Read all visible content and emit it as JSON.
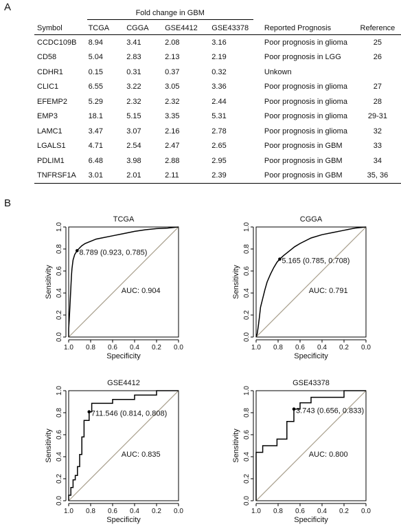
{
  "panel_a_label": "A",
  "panel_b_label": "B",
  "table": {
    "group_header": "Fold change in GBM",
    "columns": [
      "Symbol",
      "TCGA",
      "CGGA",
      "GSE4412",
      "GSE43378",
      "Reported Prognosis",
      "Reference"
    ],
    "rows": [
      [
        "CCDC109B",
        "8.94",
        "3.41",
        "2.08",
        "3.16",
        "Poor prognosis in glioma",
        "25"
      ],
      [
        "CD58",
        "5.04",
        "2.83",
        "2.13",
        "2.19",
        "Poor prognosis in LGG",
        "26"
      ],
      [
        "CDHR1",
        "0.15",
        "0.31",
        "0.37",
        "0.32",
        "Unkown",
        ""
      ],
      [
        "CLIC1",
        "6.55",
        "3.22",
        "3.05",
        "3.36",
        "Poor prognosis in glioma",
        "27"
      ],
      [
        "EFEMP2",
        "5.29",
        "2.32",
        "2.32",
        "2.44",
        "Poor prognosis in glioma",
        "28"
      ],
      [
        "EMP3",
        "18.1",
        "5.15",
        "3.35",
        "5.31",
        "Poor prognosis in glioma",
        "29-31"
      ],
      [
        "LAMC1",
        "3.47",
        "3.07",
        "2.16",
        "2.78",
        "Poor prognosis in glioma",
        "32"
      ],
      [
        "LGALS1",
        "4.71",
        "2.54",
        "2.47",
        "2.65",
        "Poor prognosis in GBM",
        "33"
      ],
      [
        "PDLIM1",
        "6.48",
        "3.98",
        "2.88",
        "2.95",
        "Poor prognosis in GBM",
        "34"
      ],
      [
        "TNFRSF1A",
        "3.01",
        "2.01",
        "2.11",
        "2.39",
        "Poor prognosis in GBM",
        "35, 36"
      ]
    ]
  },
  "chart_data": [
    {
      "type": "line",
      "title": "TCGA",
      "xlabel": "Specificity",
      "ylabel": "Sensitivity",
      "xlim": [
        1.0,
        0.0
      ],
      "ylim": [
        0.0,
        1.0
      ],
      "x_ticks": [
        "1.0",
        "0.8",
        "0.6",
        "0.4",
        "0.2",
        "0.0"
      ],
      "y_ticks": [
        "0.0",
        "0.2",
        "0.4",
        "0.6",
        "0.8",
        "1.0"
      ],
      "auc_label": "AUC: 0.904",
      "threshold_label": "8.789 (0.923, 0.785)",
      "threshold_point": [
        0.923,
        0.785
      ],
      "diagonal_color": "#a89f8c",
      "curve_color": "#000000",
      "points": [
        [
          1.0,
          0.0
        ],
        [
          1.0,
          0.08
        ],
        [
          0.995,
          0.15
        ],
        [
          0.99,
          0.25
        ],
        [
          0.985,
          0.35
        ],
        [
          0.98,
          0.45
        ],
        [
          0.975,
          0.55
        ],
        [
          0.97,
          0.62
        ],
        [
          0.96,
          0.7
        ],
        [
          0.945,
          0.75
        ],
        [
          0.923,
          0.785
        ],
        [
          0.9,
          0.81
        ],
        [
          0.88,
          0.83
        ],
        [
          0.85,
          0.85
        ],
        [
          0.8,
          0.87
        ],
        [
          0.75,
          0.89
        ],
        [
          0.7,
          0.9
        ],
        [
          0.6,
          0.92
        ],
        [
          0.5,
          0.94
        ],
        [
          0.4,
          0.96
        ],
        [
          0.3,
          0.975
        ],
        [
          0.2,
          0.985
        ],
        [
          0.1,
          0.99
        ],
        [
          0.0,
          1.0
        ]
      ]
    },
    {
      "type": "line",
      "title": "CGGA",
      "xlabel": "Specificity",
      "ylabel": "Sensitivity",
      "xlim": [
        1.0,
        0.0
      ],
      "ylim": [
        0.0,
        1.0
      ],
      "x_ticks": [
        "1.0",
        "0.8",
        "0.6",
        "0.4",
        "0.2",
        "0.0"
      ],
      "y_ticks": [
        "0.0",
        "0.2",
        "0.4",
        "0.6",
        "0.8",
        "1.0"
      ],
      "auc_label": "AUC: 0.791",
      "threshold_label": "5.165 (0.785, 0.708)",
      "threshold_point": [
        0.785,
        0.708
      ],
      "diagonal_color": "#a89f8c",
      "curve_color": "#000000",
      "points": [
        [
          1.0,
          0.0
        ],
        [
          0.99,
          0.03
        ],
        [
          0.98,
          0.1
        ],
        [
          0.97,
          0.18
        ],
        [
          0.96,
          0.27
        ],
        [
          0.94,
          0.35
        ],
        [
          0.92,
          0.43
        ],
        [
          0.9,
          0.5
        ],
        [
          0.87,
          0.57
        ],
        [
          0.84,
          0.63
        ],
        [
          0.81,
          0.68
        ],
        [
          0.785,
          0.708
        ],
        [
          0.75,
          0.74
        ],
        [
          0.7,
          0.78
        ],
        [
          0.65,
          0.82
        ],
        [
          0.6,
          0.85
        ],
        [
          0.5,
          0.9
        ],
        [
          0.4,
          0.93
        ],
        [
          0.3,
          0.95
        ],
        [
          0.2,
          0.97
        ],
        [
          0.1,
          0.99
        ],
        [
          0.0,
          1.0
        ]
      ]
    },
    {
      "type": "line",
      "title": "GSE4412",
      "xlabel": "Specificity",
      "ylabel": "Sensitivity",
      "xlim": [
        1.0,
        0.0
      ],
      "ylim": [
        0.0,
        1.0
      ],
      "x_ticks": [
        "1.0",
        "0.8",
        "0.6",
        "0.4",
        "0.2",
        "0.0"
      ],
      "y_ticks": [
        "0.0",
        "0.2",
        "0.4",
        "0.6",
        "0.8",
        "1.0"
      ],
      "auc_label": "AUC: 0.835",
      "threshold_label": "711.546 (0.814, 0.808)",
      "threshold_point": [
        0.814,
        0.808
      ],
      "diagonal_color": "#a89f8c",
      "curve_color": "#000000",
      "points": [
        [
          1.0,
          0.0
        ],
        [
          1.0,
          0.05
        ],
        [
          0.98,
          0.05
        ],
        [
          0.98,
          0.12
        ],
        [
          0.96,
          0.12
        ],
        [
          0.96,
          0.19
        ],
        [
          0.94,
          0.19
        ],
        [
          0.94,
          0.23
        ],
        [
          0.92,
          0.23
        ],
        [
          0.92,
          0.31
        ],
        [
          0.9,
          0.31
        ],
        [
          0.9,
          0.42
        ],
        [
          0.88,
          0.42
        ],
        [
          0.88,
          0.58
        ],
        [
          0.86,
          0.58
        ],
        [
          0.86,
          0.73
        ],
        [
          0.814,
          0.73
        ],
        [
          0.814,
          0.808
        ],
        [
          0.79,
          0.808
        ],
        [
          0.79,
          0.885
        ],
        [
          0.6,
          0.885
        ],
        [
          0.6,
          0.92
        ],
        [
          0.4,
          0.92
        ],
        [
          0.4,
          0.96
        ],
        [
          0.2,
          0.96
        ],
        [
          0.2,
          1.0
        ],
        [
          0.0,
          1.0
        ]
      ]
    },
    {
      "type": "line",
      "title": "GSE43378",
      "xlabel": "Specificity",
      "ylabel": "Sensitivity",
      "xlim": [
        1.0,
        0.0
      ],
      "ylim": [
        0.0,
        1.0
      ],
      "x_ticks": [
        "1.0",
        "0.8",
        "0.6",
        "0.4",
        "0.2",
        "0.0"
      ],
      "y_ticks": [
        "0.0",
        "0.2",
        "0.4",
        "0.6",
        "0.8",
        "1.0"
      ],
      "auc_label": "AUC: 0.800",
      "threshold_label": "3.743 (0.656, 0.833)",
      "threshold_point": [
        0.656,
        0.833
      ],
      "diagonal_color": "#a89f8c",
      "curve_color": "#000000",
      "points": [
        [
          1.0,
          0.0
        ],
        [
          1.0,
          0.44
        ],
        [
          0.94,
          0.44
        ],
        [
          0.94,
          0.5
        ],
        [
          0.81,
          0.5
        ],
        [
          0.81,
          0.56
        ],
        [
          0.72,
          0.56
        ],
        [
          0.72,
          0.72
        ],
        [
          0.656,
          0.72
        ],
        [
          0.656,
          0.833
        ],
        [
          0.6,
          0.833
        ],
        [
          0.6,
          0.89
        ],
        [
          0.5,
          0.89
        ],
        [
          0.5,
          0.94
        ],
        [
          0.2,
          0.94
        ],
        [
          0.2,
          1.0
        ],
        [
          0.0,
          1.0
        ]
      ]
    }
  ]
}
